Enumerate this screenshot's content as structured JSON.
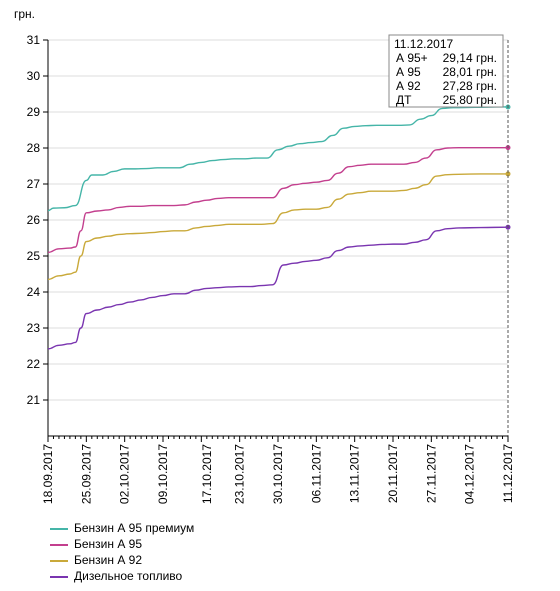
{
  "chart_data": {
    "type": "line",
    "ylabel": "грн.",
    "ylim": [
      20,
      31
    ],
    "yticks": [
      21,
      22,
      23,
      24,
      25,
      26,
      27,
      28,
      29,
      30,
      31
    ],
    "x_start": "18.09.2017",
    "x_end": "11.12.2017",
    "xtick_labels": [
      "18.09.2017",
      "25.09.2017",
      "02.10.2017",
      "09.10.2017",
      "17.10.2017",
      "23.10.2017",
      "30.10.2017",
      "06.11.2017",
      "13.11.2017",
      "20.11.2017",
      "27.11.2017",
      "04.12.2017",
      "11.12.2017"
    ],
    "grid": "horizontal",
    "legend_position": "bottom-left",
    "series": [
      {
        "name": "Бензин А 95 премиум",
        "color": "#45b5a8",
        "points": [
          [
            "18.09.2017",
            26.26
          ],
          [
            "19.09.2017",
            26.33
          ],
          [
            "21.09.2017",
            26.34
          ],
          [
            "23.09.2017",
            26.4
          ],
          [
            "25.09.2017",
            27.1
          ],
          [
            "26.09.2017",
            27.25
          ],
          [
            "28.09.2017",
            27.25
          ],
          [
            "30.09.2017",
            27.35
          ],
          [
            "02.10.2017",
            27.42
          ],
          [
            "04.10.2017",
            27.42
          ],
          [
            "06.10.2017",
            27.43
          ],
          [
            "08.10.2017",
            27.45
          ],
          [
            "10.10.2017",
            27.45
          ],
          [
            "12.10.2017",
            27.45
          ],
          [
            "14.10.2017",
            27.55
          ],
          [
            "16.10.2017",
            27.6
          ],
          [
            "18.10.2017",
            27.65
          ],
          [
            "20.10.2017",
            27.68
          ],
          [
            "22.10.2017",
            27.7
          ],
          [
            "24.10.2017",
            27.7
          ],
          [
            "26.10.2017",
            27.72
          ],
          [
            "28.10.2017",
            27.72
          ],
          [
            "30.10.2017",
            27.95
          ],
          [
            "01.11.2017",
            28.05
          ],
          [
            "03.11.2017",
            28.12
          ],
          [
            "05.11.2017",
            28.15
          ],
          [
            "07.11.2017",
            28.18
          ],
          [
            "09.11.2017",
            28.35
          ],
          [
            "11.11.2017",
            28.55
          ],
          [
            "13.11.2017",
            28.6
          ],
          [
            "15.11.2017",
            28.62
          ],
          [
            "17.11.2017",
            28.63
          ],
          [
            "19.11.2017",
            28.63
          ],
          [
            "21.11.2017",
            28.63
          ],
          [
            "23.11.2017",
            28.64
          ],
          [
            "25.11.2017",
            28.8
          ],
          [
            "27.11.2017",
            28.9
          ],
          [
            "29.11.2017",
            29.1
          ],
          [
            "01.12.2017",
            29.12
          ],
          [
            "05.12.2017",
            29.13
          ],
          [
            "09.12.2017",
            29.14
          ],
          [
            "11.12.2017",
            29.14
          ]
        ]
      },
      {
        "name": "Бензин А 95",
        "color": "#c33f8e",
        "points": [
          [
            "18.09.2017",
            25.1
          ],
          [
            "20.09.2017",
            25.2
          ],
          [
            "22.09.2017",
            25.22
          ],
          [
            "23.09.2017",
            25.25
          ],
          [
            "24.09.2017",
            25.7
          ],
          [
            "25.09.2017",
            26.2
          ],
          [
            "27.09.2017",
            26.25
          ],
          [
            "29.09.2017",
            26.28
          ],
          [
            "01.10.2017",
            26.35
          ],
          [
            "03.10.2017",
            26.38
          ],
          [
            "05.10.2017",
            26.38
          ],
          [
            "07.10.2017",
            26.4
          ],
          [
            "09.10.2017",
            26.4
          ],
          [
            "11.10.2017",
            26.4
          ],
          [
            "13.10.2017",
            26.42
          ],
          [
            "15.10.2017",
            26.5
          ],
          [
            "17.10.2017",
            26.55
          ],
          [
            "19.10.2017",
            26.6
          ],
          [
            "21.10.2017",
            26.62
          ],
          [
            "23.10.2017",
            26.62
          ],
          [
            "25.10.2017",
            26.62
          ],
          [
            "27.10.2017",
            26.62
          ],
          [
            "29.10.2017",
            26.62
          ],
          [
            "31.10.2017",
            26.88
          ],
          [
            "02.11.2017",
            26.98
          ],
          [
            "04.11.2017",
            27.02
          ],
          [
            "06.11.2017",
            27.05
          ],
          [
            "08.11.2017",
            27.1
          ],
          [
            "10.11.2017",
            27.3
          ],
          [
            "12.11.2017",
            27.48
          ],
          [
            "14.11.2017",
            27.52
          ],
          [
            "16.11.2017",
            27.55
          ],
          [
            "18.11.2017",
            27.55
          ],
          [
            "20.11.2017",
            27.55
          ],
          [
            "22.11.2017",
            27.55
          ],
          [
            "24.11.2017",
            27.6
          ],
          [
            "26.11.2017",
            27.72
          ],
          [
            "28.11.2017",
            27.95
          ],
          [
            "30.11.2017",
            28.0
          ],
          [
            "02.12.2017",
            28.01
          ],
          [
            "06.12.2017",
            28.01
          ],
          [
            "11.12.2017",
            28.01
          ]
        ]
      },
      {
        "name": "Бензин А 92",
        "color": "#c9a93a",
        "points": [
          [
            "18.09.2017",
            24.35
          ],
          [
            "20.09.2017",
            24.45
          ],
          [
            "22.09.2017",
            24.5
          ],
          [
            "23.09.2017",
            24.55
          ],
          [
            "24.09.2017",
            25.0
          ],
          [
            "25.09.2017",
            25.4
          ],
          [
            "27.09.2017",
            25.5
          ],
          [
            "29.09.2017",
            25.55
          ],
          [
            "01.10.2017",
            25.6
          ],
          [
            "03.10.2017",
            25.62
          ],
          [
            "05.10.2017",
            25.63
          ],
          [
            "07.10.2017",
            25.65
          ],
          [
            "09.10.2017",
            25.68
          ],
          [
            "11.10.2017",
            25.7
          ],
          [
            "13.10.2017",
            25.7
          ],
          [
            "15.10.2017",
            25.78
          ],
          [
            "17.10.2017",
            25.82
          ],
          [
            "19.10.2017",
            25.85
          ],
          [
            "21.10.2017",
            25.88
          ],
          [
            "23.10.2017",
            25.88
          ],
          [
            "25.10.2017",
            25.88
          ],
          [
            "27.10.2017",
            25.88
          ],
          [
            "29.10.2017",
            25.9
          ],
          [
            "31.10.2017",
            26.2
          ],
          [
            "02.11.2017",
            26.28
          ],
          [
            "04.11.2017",
            26.3
          ],
          [
            "06.11.2017",
            26.3
          ],
          [
            "08.11.2017",
            26.35
          ],
          [
            "10.11.2017",
            26.58
          ],
          [
            "12.11.2017",
            26.72
          ],
          [
            "14.11.2017",
            26.76
          ],
          [
            "16.11.2017",
            26.8
          ],
          [
            "18.11.2017",
            26.8
          ],
          [
            "20.11.2017",
            26.8
          ],
          [
            "22.11.2017",
            26.82
          ],
          [
            "24.11.2017",
            26.88
          ],
          [
            "26.11.2017",
            26.98
          ],
          [
            "28.11.2017",
            27.22
          ],
          [
            "30.11.2017",
            27.26
          ],
          [
            "02.12.2017",
            27.27
          ],
          [
            "06.12.2017",
            27.28
          ],
          [
            "11.12.2017",
            27.28
          ]
        ]
      },
      {
        "name": "Дизельное топливо",
        "color": "#7a35b0",
        "points": [
          [
            "18.09.2017",
            22.42
          ],
          [
            "20.09.2017",
            22.52
          ],
          [
            "22.09.2017",
            22.56
          ],
          [
            "23.09.2017",
            22.6
          ],
          [
            "24.09.2017",
            23.0
          ],
          [
            "25.09.2017",
            23.4
          ],
          [
            "27.09.2017",
            23.5
          ],
          [
            "29.09.2017",
            23.58
          ],
          [
            "01.10.2017",
            23.65
          ],
          [
            "03.10.2017",
            23.72
          ],
          [
            "05.10.2017",
            23.78
          ],
          [
            "07.10.2017",
            23.85
          ],
          [
            "09.10.2017",
            23.9
          ],
          [
            "11.10.2017",
            23.95
          ],
          [
            "13.10.2017",
            23.95
          ],
          [
            "15.10.2017",
            24.05
          ],
          [
            "17.10.2017",
            24.1
          ],
          [
            "19.10.2017",
            24.12
          ],
          [
            "21.10.2017",
            24.14
          ],
          [
            "23.10.2017",
            24.15
          ],
          [
            "25.10.2017",
            24.15
          ],
          [
            "27.10.2017",
            24.18
          ],
          [
            "29.10.2017",
            24.2
          ],
          [
            "31.10.2017",
            24.75
          ],
          [
            "02.11.2017",
            24.8
          ],
          [
            "04.11.2017",
            24.85
          ],
          [
            "06.11.2017",
            24.88
          ],
          [
            "08.11.2017",
            24.95
          ],
          [
            "10.11.2017",
            25.15
          ],
          [
            "12.11.2017",
            25.25
          ],
          [
            "14.11.2017",
            25.28
          ],
          [
            "16.11.2017",
            25.3
          ],
          [
            "18.11.2017",
            25.32
          ],
          [
            "20.11.2017",
            25.33
          ],
          [
            "22.11.2017",
            25.33
          ],
          [
            "24.11.2017",
            25.38
          ],
          [
            "26.11.2017",
            25.45
          ],
          [
            "28.11.2017",
            25.7
          ],
          [
            "30.11.2017",
            25.76
          ],
          [
            "02.12.2017",
            25.78
          ],
          [
            "06.12.2017",
            25.79
          ],
          [
            "11.12.2017",
            25.8
          ]
        ]
      }
    ],
    "tooltip": {
      "date": "11.12.2017",
      "rows": [
        {
          "label": "А 95+",
          "value": "29,14 грн."
        },
        {
          "label": "А 95",
          "value": "28,01 грн."
        },
        {
          "label": "А 92",
          "value": "27,28 грн."
        },
        {
          "label": "ДТ",
          "value": "25,80 грн."
        }
      ]
    }
  }
}
